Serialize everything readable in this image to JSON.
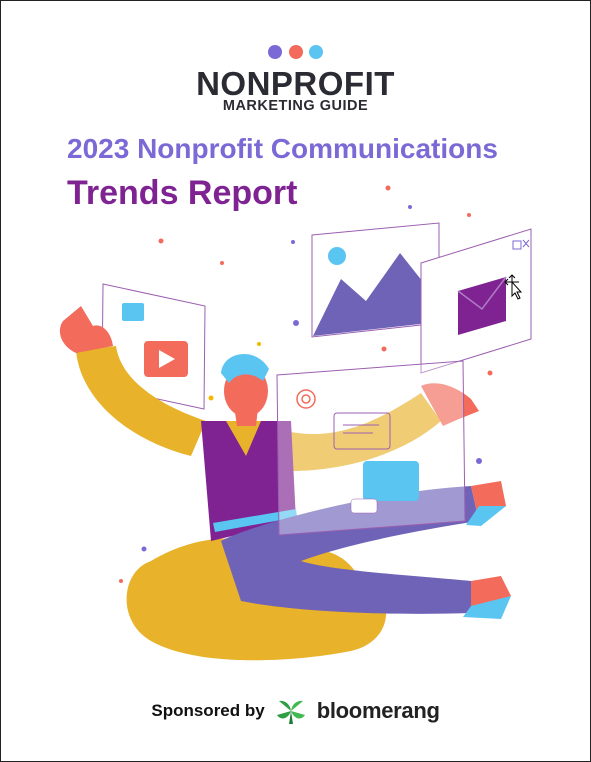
{
  "brand": {
    "name": "NONPROFIT",
    "subtitle": "MARKETING GUIDE",
    "dot_colors": [
      "#7b6ad6",
      "#f26b5b",
      "#5bc5f2"
    ]
  },
  "report": {
    "title_line1": "2023 Nonprofit Communications",
    "title_line2": "Trends Report",
    "line1_color": "#7b6ad6",
    "line2_color": "#7f2393"
  },
  "sponsor": {
    "label": "Sponsored by",
    "name": "bloomerang",
    "logo_color": "#2f9e44"
  },
  "icons": {
    "illustration": "person-with-floating-windows",
    "cursor": "move-cursor-icon"
  }
}
